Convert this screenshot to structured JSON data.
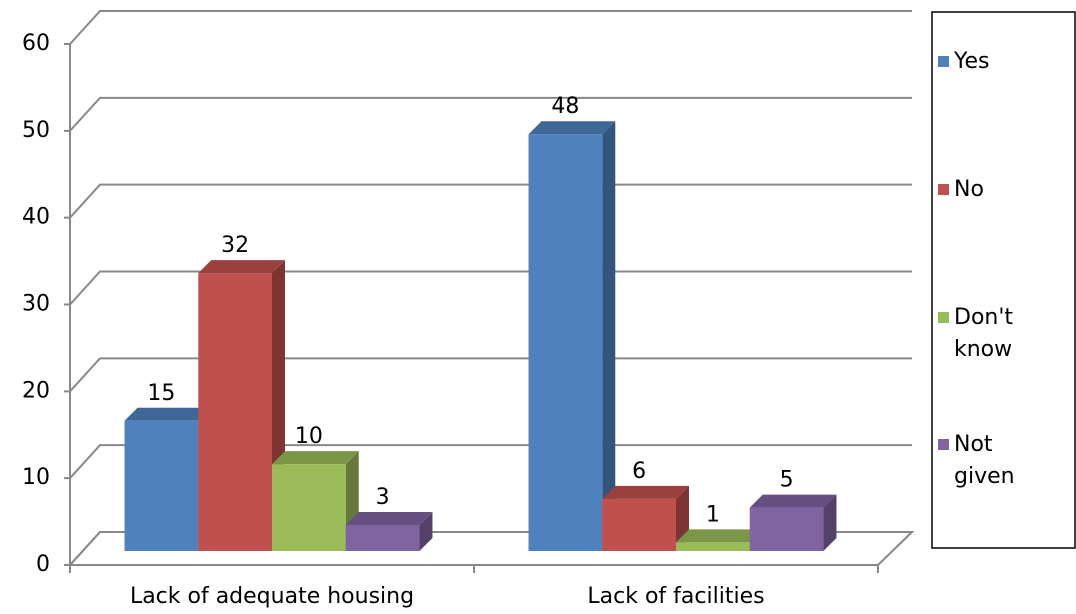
{
  "chart_data": {
    "type": "bar3d",
    "categories": [
      "Lack of adequate housing",
      "Lack of facilities"
    ],
    "series": [
      {
        "name": "Yes",
        "color": "#4F81BD",
        "values": [
          15,
          48
        ]
      },
      {
        "name": "No",
        "color": "#C0504D",
        "values": [
          32,
          6
        ]
      },
      {
        "name": "Don't know",
        "color": "#9BBB59",
        "values": [
          10,
          1
        ]
      },
      {
        "name": "Not given",
        "color": "#8064A2",
        "values": [
          3,
          5
        ]
      }
    ],
    "ylim": [
      0,
      60
    ],
    "yticks": [
      0,
      10,
      20,
      30,
      40,
      50,
      60
    ],
    "grid": true,
    "legend": "right"
  }
}
